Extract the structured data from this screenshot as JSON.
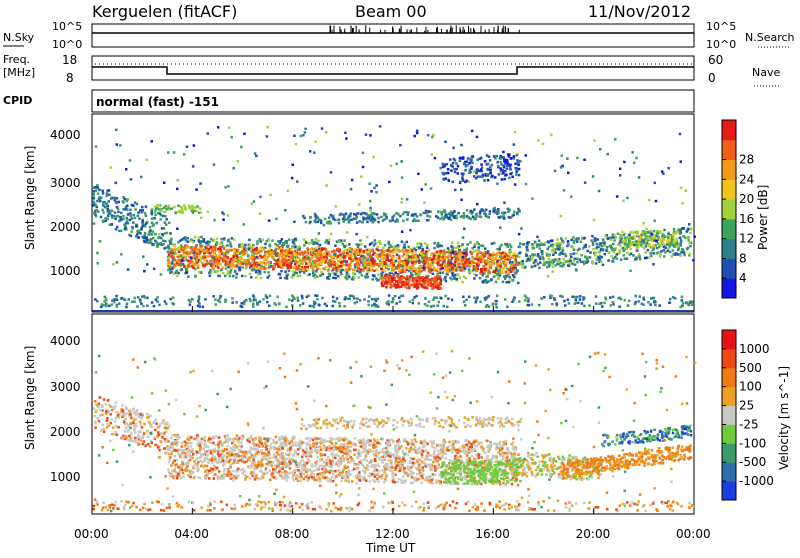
{
  "header": {
    "station": "Kerguelen (fitACF)",
    "beam": "Beam 00",
    "date": "11/Nov/2012"
  },
  "strips": {
    "nsky_label": "N.Sky",
    "nsearch_label": "N.Search",
    "nsky_ticks": [
      "10^5",
      "10^0"
    ],
    "nsearch_ticks": [
      "10^5",
      "10^0"
    ],
    "freq_label_1": "Freq.",
    "freq_label_2": "[MHz]",
    "freq_ticks": [
      "18",
      "8"
    ],
    "nave_label": "Nave",
    "nave_ticks": [
      "60",
      "0"
    ],
    "cpid_label": "CPID",
    "cpid_value": "normal (fast) -151"
  },
  "chart_data": [
    {
      "type": "heatmap",
      "title": "",
      "xlabel": "",
      "ylabel": "Slant Range [km]",
      "xlim": [
        0,
        24
      ],
      "ylim": [
        180,
        4600
      ],
      "yticks": [
        "1000",
        "2000",
        "3000",
        "4000"
      ],
      "colorbar": {
        "label": "Power [dB]",
        "ticks": [
          "4",
          "8",
          "12",
          "16",
          "20",
          "24",
          "28"
        ],
        "colors": [
          "#1414e6",
          "#1f4fb4",
          "#2f7f8f",
          "#3da35a",
          "#9fd13a",
          "#f0c418",
          "#f59a18",
          "#f0601a",
          "#e81a14"
        ]
      },
      "grid": false
    },
    {
      "type": "heatmap",
      "title": "",
      "xlabel": "Time UT",
      "ylabel": "Slant Range [km]",
      "xlim": [
        0,
        24
      ],
      "ylim": [
        180,
        4600
      ],
      "yticks": [
        "1000",
        "2000",
        "3000",
        "4000"
      ],
      "xticks": [
        "00:00",
        "04:00",
        "08:00",
        "12:00",
        "16:00",
        "20:00",
        "00:00"
      ],
      "colorbar": {
        "label": "Velocity [m s^-1]",
        "ticks": [
          "1000",
          "500",
          "100",
          "25",
          "-25",
          "-100",
          "-500",
          "-1000"
        ],
        "colors": [
          "#1a3ce0",
          "#2f6fb0",
          "#3d9a6b",
          "#6ccc3c",
          "#c8c8c4",
          "#f0a020",
          "#f07a14",
          "#ec4a14",
          "#e81414"
        ]
      },
      "grid": false
    }
  ]
}
